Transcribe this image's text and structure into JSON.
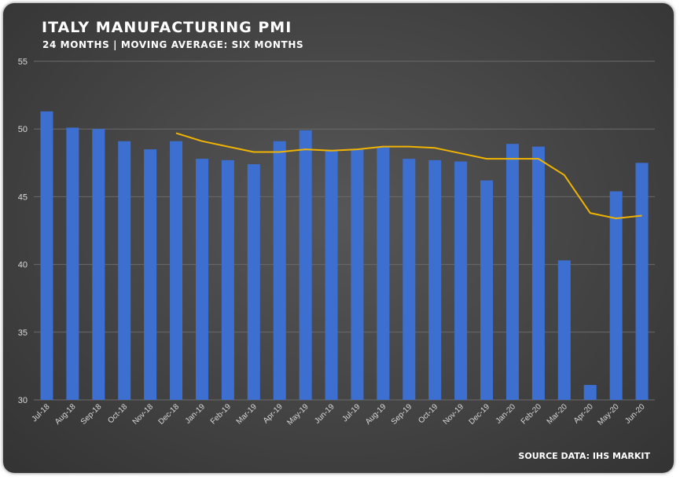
{
  "colors": {
    "bar": "#3d6fd0",
    "line": "#f0b400",
    "grid": "#6a6a6a",
    "text": "#ffffff"
  },
  "chart_data": {
    "type": "bar",
    "title": "ITALY MANUFACTURING PMI",
    "subtitle": "24 MONTHS | MOVING AVERAGE: SIX MONTHS",
    "source": "SOURCE DATA: IHS MARKIT",
    "xlabel": "",
    "ylabel": "",
    "ylim": [
      30,
      55
    ],
    "yticks": [
      30,
      35,
      40,
      45,
      50,
      55
    ],
    "grid": true,
    "legend": "none",
    "categories": [
      "Jul-18",
      "Aug-18",
      "Sep-18",
      "Oct-18",
      "Nov-18",
      "Dec-18",
      "Jan-19",
      "Feb-19",
      "Mar-19",
      "Apr-19",
      "May-19",
      "Jun-19",
      "Jul-19",
      "Aug-19",
      "Sep-19",
      "Oct-19",
      "Nov-19",
      "Dec-19",
      "Jan-20",
      "Feb-20",
      "Mar-20",
      "Apr-20",
      "May-20",
      "Jun-20"
    ],
    "series": [
      {
        "type": "bar",
        "values": [
          51.3,
          50.1,
          50.0,
          49.1,
          48.5,
          49.1,
          47.8,
          47.7,
          47.4,
          49.1,
          49.9,
          48.4,
          48.5,
          48.7,
          47.8,
          47.7,
          47.6,
          46.2,
          48.9,
          48.7,
          40.3,
          31.1,
          45.4,
          47.5
        ]
      },
      {
        "type": "line",
        "values": [
          null,
          null,
          null,
          null,
          null,
          49.7,
          49.1,
          48.7,
          48.3,
          48.3,
          48.5,
          48.4,
          48.5,
          48.7,
          48.7,
          48.6,
          48.2,
          47.8,
          47.8,
          47.8,
          46.6,
          43.8,
          43.4,
          43.6
        ]
      }
    ]
  }
}
